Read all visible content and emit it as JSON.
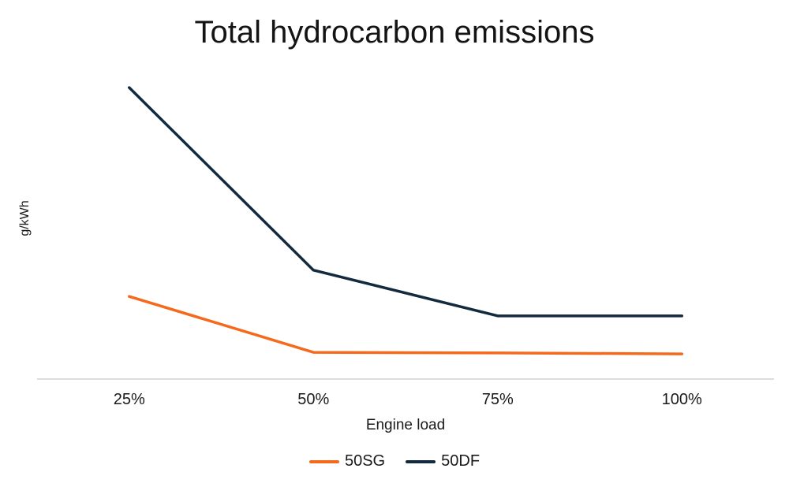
{
  "page": {
    "background": "#FFFFFF"
  },
  "chart_data": {
    "type": "line",
    "title": "Total hydrocarbon emissions",
    "xlabel": "Engine load",
    "ylabel": "g/kWh",
    "categories": [
      "25%",
      "50%",
      "75%",
      "100%"
    ],
    "series": [
      {
        "name": "50SG",
        "color": "#F5691D",
        "values": [
          27.0,
          8.9,
          8.7,
          8.4
        ]
      },
      {
        "name": "50DF",
        "color": "#13293D",
        "values": [
          94.6,
          35.5,
          20.7,
          20.7
        ]
      }
    ],
    "ylim": [
      0,
      100
    ],
    "y_tick_labels": [],
    "grid": "off",
    "legend_position": "bottom",
    "axis_line_color": "#DCDCDC",
    "text_color": "#1A1A1A",
    "value_note": "y values are relative units (0-100 of plot height); no numeric y-axis ticks are shown in the chart"
  }
}
